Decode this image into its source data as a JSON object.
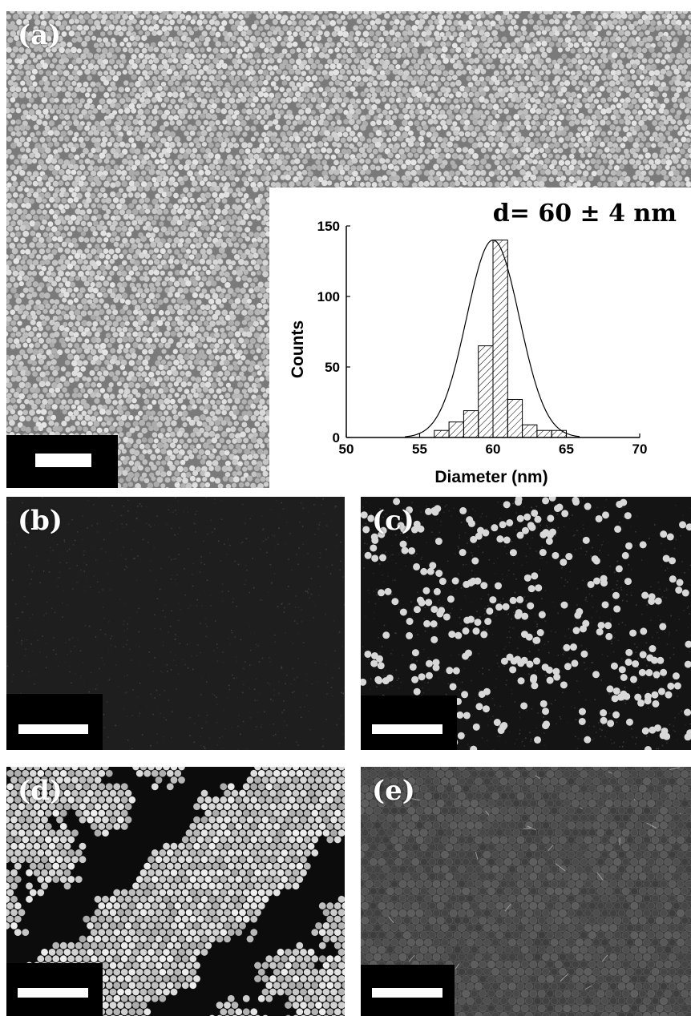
{
  "panels": {
    "a": {
      "label": "(a)"
    },
    "b": {
      "label": "(b)"
    },
    "c": {
      "label": "(c)"
    },
    "d": {
      "label": "(d)"
    },
    "e": {
      "label": "(e)"
    }
  },
  "colors": {
    "panel_a_background": "#7a7a7a",
    "panel_b_background": "#1e1e1e",
    "panel_c_background": "#141414",
    "panel_d_background": "#0c0c0c",
    "panel_e_background": "#3c3c3c",
    "particle": "#d8d8d8",
    "scale_bar": "#ffffff"
  },
  "chart_data": {
    "type": "bar",
    "annotation": "d= 60 ± 4 nm",
    "xlabel": "Diameter (nm)",
    "ylabel": "Counts",
    "xlim": [
      50,
      70
    ],
    "ylim": [
      0,
      150
    ],
    "xticks": [
      "50",
      "55",
      "60",
      "65",
      "70"
    ],
    "yticks": [
      "0",
      "50",
      "100",
      "150"
    ],
    "bins": [
      {
        "x0": 56,
        "x1": 57,
        "count": 5
      },
      {
        "x0": 57,
        "x1": 58,
        "count": 11
      },
      {
        "x0": 58,
        "x1": 59,
        "count": 19
      },
      {
        "x0": 59,
        "x1": 60,
        "count": 65
      },
      {
        "x0": 60,
        "x1": 61,
        "count": 140
      },
      {
        "x0": 61,
        "x1": 62,
        "count": 27
      },
      {
        "x0": 62,
        "x1": 63,
        "count": 9
      },
      {
        "x0": 63,
        "x1": 64,
        "count": 5
      },
      {
        "x0": 64,
        "x1": 65,
        "count": 5
      }
    ],
    "fit": {
      "type": "gaussian",
      "mean": 60,
      "peak": 140,
      "sigma": 1.8
    },
    "bar_fill": "hatched",
    "grid": false
  }
}
